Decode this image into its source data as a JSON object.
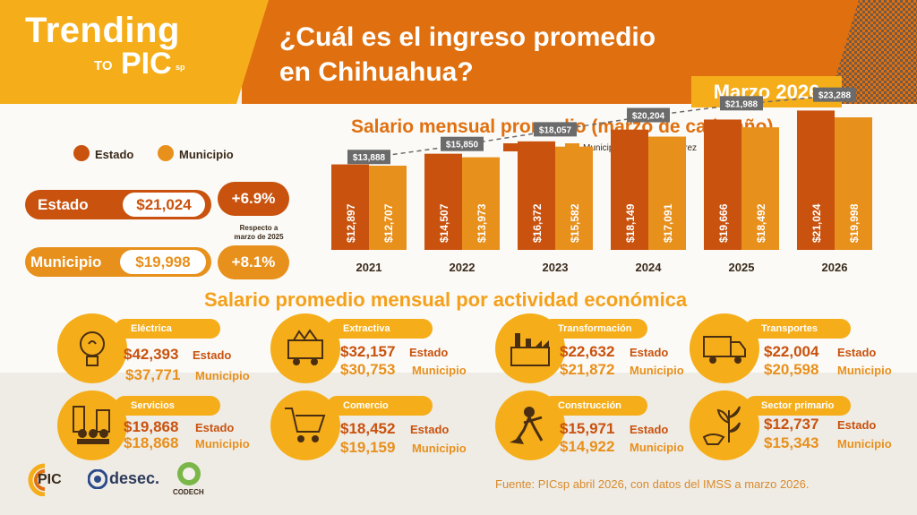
{
  "header": {
    "brand_title": "Trending",
    "brand_to": "TO",
    "brand_pic": "PIC",
    "brand_sp": "sp",
    "headline_line1": "¿Cuál es el ingreso promedio",
    "headline_line2": "en Chihuahua?",
    "date_badge": "Marzo 2026"
  },
  "summary": {
    "legend_estado": "Estado",
    "legend_municipio": "Municipio",
    "estado_label": "Estado",
    "estado_value": "$21,024",
    "estado_change": "+6.9%",
    "municipio_label": "Municipio",
    "municipio_value": "$19,998",
    "municipio_change": "+8.1%",
    "note_line1": "Respecto a",
    "note_line2": "marzo de 2025"
  },
  "activities": {
    "title": "Salario promedio mensual por actividad económica",
    "items": [
      {
        "name": "Eléctrica",
        "estado": "$42,393",
        "municipio": "$37,771",
        "estado_label": "Estado",
        "municipio_label": "Municipio",
        "icon": "lightbulb-icon"
      },
      {
        "name": "Extractiva",
        "estado": "$32,157",
        "municipio": "$30,753",
        "estado_label": "Estado",
        "municipio_label": "Municipio",
        "icon": "mine-cart-icon"
      },
      {
        "name": "Transformación",
        "estado": "$22,632",
        "municipio": "$21,872",
        "estado_label": "Estado",
        "municipio_label": "Municipio",
        "icon": "factory-icon"
      },
      {
        "name": "Transportes",
        "estado": "$22,004",
        "municipio": "$20,598",
        "estado_label": "Estado",
        "municipio_label": "Municipio",
        "icon": "truck-icon"
      },
      {
        "name": "Servicios",
        "estado": "$19,868",
        "municipio": "$18,868",
        "estado_label": "Estado",
        "municipio_label": "Municipio",
        "icon": "people-icon"
      },
      {
        "name": "Comercio",
        "estado": "$18,452",
        "municipio": "$19,159",
        "estado_label": "Estado",
        "municipio_label": "Municipio",
        "icon": "shopping-cart-icon"
      },
      {
        "name": "Construcción",
        "estado": "$15,971",
        "municipio": "$14,922",
        "estado_label": "Estado",
        "municipio_label": "Municipio",
        "icon": "worker-shovel-icon"
      },
      {
        "name": "Sector primario",
        "estado": "$12,737",
        "municipio": "$15,343",
        "estado_label": "Estado",
        "municipio_label": "Municipio",
        "icon": "plant-icon"
      }
    ]
  },
  "footer": {
    "source": "Fuente: PICsp abril 2026, con datos del IMSS a marzo 2026.",
    "logo_pic": "PIC",
    "logo_desec": "desec.",
    "logo_codech": "CODECH"
  },
  "colors": {
    "dark_orange": "#c9520e",
    "orange": "#e8901c",
    "light_orange": "#f5ae1a",
    "gray": "#6b6b6b"
  },
  "chart_data": {
    "type": "bar",
    "title": "Salario mensual promedio (marzo de cada año)",
    "categories": [
      "2021",
      "2022",
      "2023",
      "2024",
      "2025",
      "2026"
    ],
    "series": [
      {
        "name": "Estado",
        "values": [
          12897,
          14507,
          16372,
          18149,
          19666,
          21024
        ],
        "labels": [
          "$12,897",
          "$14,507",
          "$16,372",
          "$18,149",
          "$19,666",
          "$21,024"
        ]
      },
      {
        "name": "Municipio",
        "values": [
          12707,
          13973,
          15582,
          17091,
          18492,
          19998
        ],
        "labels": [
          "$12,707",
          "$13,973",
          "$15,582",
          "$17,091",
          "$18,492",
          "$19,998"
        ]
      },
      {
        "name": "Juárez",
        "values": [
          13888,
          15850,
          18057,
          20204,
          21988,
          23288
        ],
        "labels": [
          "$13,888",
          "$15,850",
          "$18,057",
          "$20,204",
          "$21,988",
          "$23,288"
        ]
      }
    ],
    "legend": [
      "Estado",
      "Municipio",
      "Juárez"
    ],
    "ylim": [
      0,
      24000
    ]
  }
}
